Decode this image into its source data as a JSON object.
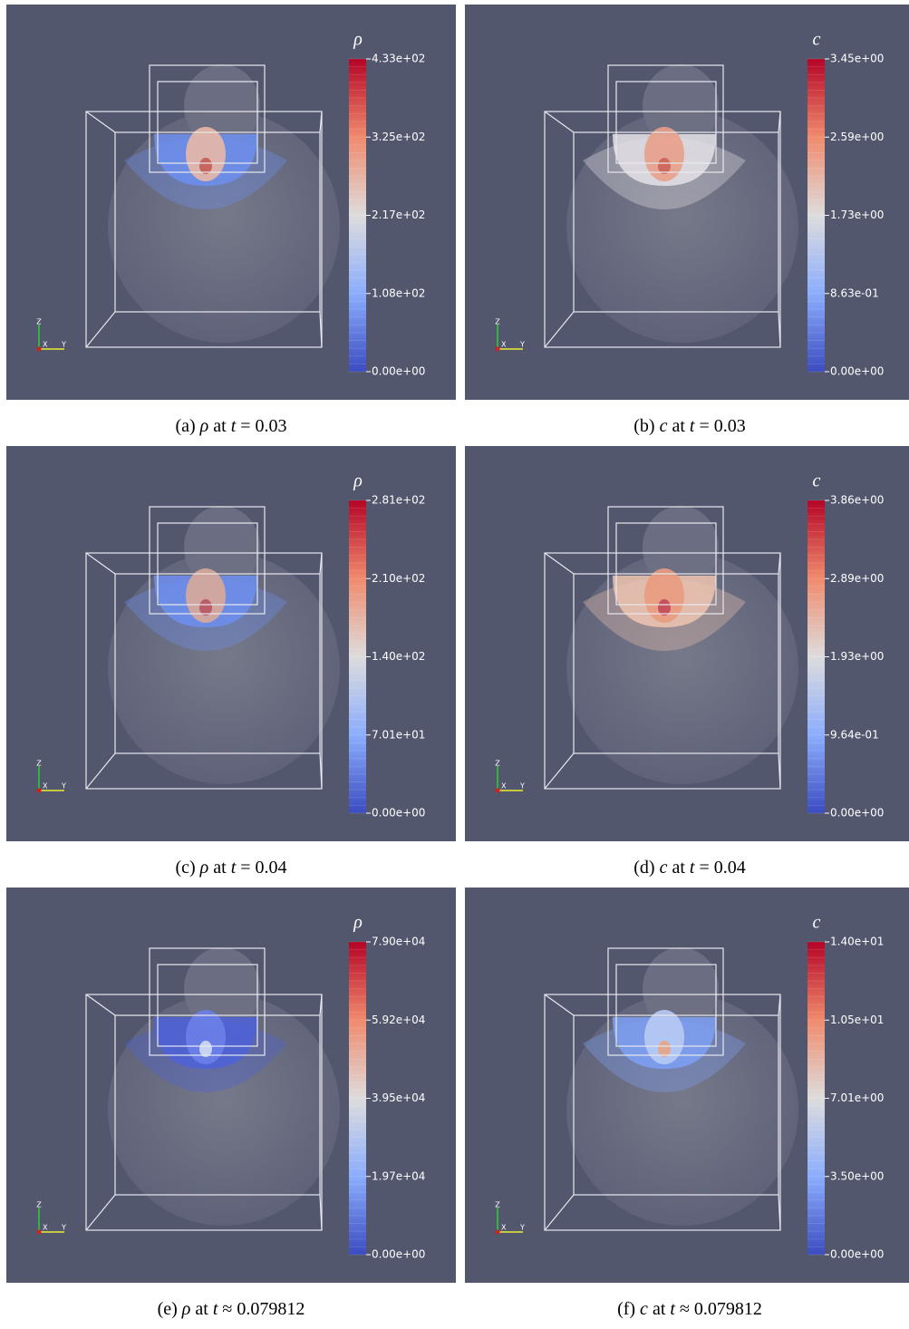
{
  "panels": [
    {
      "colorbar": {
        "title": "ρ",
        "ticks": [
          "4.33e+02",
          "3.25e+02",
          "2.17e+02",
          "1.08e+02",
          "0.00e+00"
        ]
      },
      "caption": {
        "label": "(a)",
        "symbol": "ρ",
        "mid": "at",
        "tsym": "t",
        "value": "= 0.03"
      }
    },
    {
      "colorbar": {
        "title": "c",
        "ticks": [
          "3.45e+00",
          "2.59e+00",
          "1.73e+00",
          "8.63e-01",
          "0.00e+00"
        ]
      },
      "caption": {
        "label": "(b)",
        "symbol": "c",
        "mid": "at",
        "tsym": "t",
        "value": "= 0.03"
      }
    },
    {
      "colorbar": {
        "title": "ρ",
        "ticks": [
          "2.81e+02",
          "2.10e+02",
          "1.40e+02",
          "7.01e+01",
          "0.00e+00"
        ]
      },
      "caption": {
        "label": "(c)",
        "symbol": "ρ",
        "mid": "at",
        "tsym": "t",
        "value": "= 0.04"
      }
    },
    {
      "colorbar": {
        "title": "c",
        "ticks": [
          "3.86e+00",
          "2.89e+00",
          "1.93e+00",
          "9.64e-01",
          "0.00e+00"
        ]
      },
      "caption": {
        "label": "(d)",
        "symbol": "c",
        "mid": "at",
        "tsym": "t",
        "value": "= 0.04"
      }
    },
    {
      "colorbar": {
        "title": "ρ",
        "ticks": [
          "7.90e+04",
          "5.92e+04",
          "3.95e+04",
          "1.97e+04",
          "0.00e+00"
        ]
      },
      "caption": {
        "label": "(e)",
        "symbol": "ρ",
        "mid": "at",
        "tsym": "t",
        "value": "≈ 0.079812"
      }
    },
    {
      "colorbar": {
        "title": "c",
        "ticks": [
          "1.40e+01",
          "1.05e+01",
          "7.01e+00",
          "3.50e+00",
          "0.00e+00"
        ]
      },
      "caption": {
        "label": "(f)",
        "symbol": "c",
        "mid": "at",
        "tsym": "t",
        "value": "≈ 0.079812"
      }
    }
  ],
  "axes": {
    "x": "X",
    "y": "Y",
    "z": "Z"
  }
}
